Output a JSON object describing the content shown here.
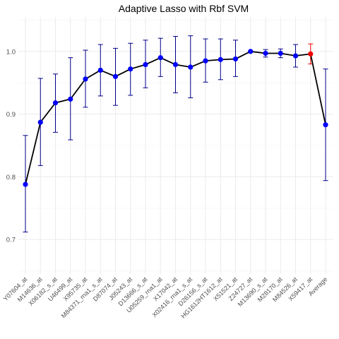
{
  "chart_data": {
    "type": "line",
    "title": "Adaptive Lasso with Rbf SVM",
    "xlabel": "",
    "ylabel": "",
    "ylim": [
      0.645,
      1.055
    ],
    "yticks": [
      0.7,
      0.8,
      0.9,
      1.0
    ],
    "ytick_labels": [
      "0.7",
      "0.8",
      "0.9",
      "1.0"
    ],
    "grid": true,
    "categories": [
      "Y07604_at",
      "M14636_at",
      "X06182_s_at",
      "U46499_at",
      "X95735_at",
      "M84371_rna1_s_at",
      "D87074_at",
      "J05243_at",
      "D13666_s_at",
      "U05259_rna1_at",
      "X17042_at",
      "X02416_rna1_s_at",
      "D26156_s_at",
      "HG1612HT1612_at",
      "X51521_at",
      "Z24727_at",
      "M13690_s_at",
      "M28170_at",
      "M84526_at",
      "X59417_at",
      "Average"
    ],
    "series": [
      {
        "values": [
          0.788,
          0.887,
          0.918,
          0.924,
          0.956,
          0.97,
          0.96,
          0.972,
          0.979,
          0.99,
          0.979,
          0.975,
          0.985,
          0.987,
          0.988,
          1.0,
          0.997,
          0.997,
          0.993,
          0.996,
          0.883
        ],
        "lower": [
          0.712,
          0.818,
          0.871,
          0.859,
          0.911,
          0.929,
          0.914,
          0.93,
          0.942,
          0.96,
          0.934,
          0.926,
          0.951,
          0.955,
          0.96,
          1.0,
          0.991,
          0.99,
          0.975,
          0.98,
          0.794
        ],
        "upper": [
          0.866,
          0.957,
          0.964,
          0.99,
          1.002,
          1.011,
          1.005,
          1.013,
          1.018,
          1.021,
          1.024,
          1.025,
          1.02,
          1.02,
          1.018,
          1.0,
          1.003,
          1.004,
          1.011,
          1.012,
          0.972
        ]
      }
    ],
    "highlight_index": 19,
    "colors": {
      "line": "#000000",
      "point": "#0000ff",
      "errorbar": "#00008b",
      "highlight": "#ee0000"
    }
  }
}
